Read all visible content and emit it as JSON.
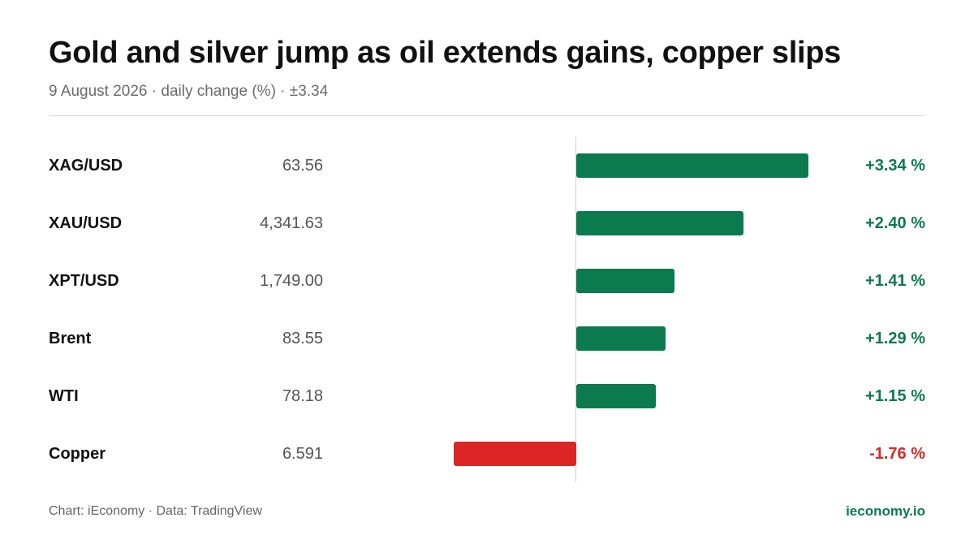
{
  "chart_data": {
    "type": "bar",
    "orientation": "horizontal",
    "title": "Gold and silver jump as oil extends gains, copper slips",
    "subtitle": "9 August 2026 · daily change (%) · ±3.34",
    "xlim": [
      -3.34,
      3.34
    ],
    "rows": [
      {
        "label": "XAG/USD",
        "price": "63.56",
        "change": 3.34,
        "change_label": "+3.34 %"
      },
      {
        "label": "XAU/USD",
        "price": "4,341.63",
        "change": 2.4,
        "change_label": "+2.40 %"
      },
      {
        "label": "XPT/USD",
        "price": "1,749.00",
        "change": 1.41,
        "change_label": "+1.41 %"
      },
      {
        "label": "Brent",
        "price": "83.55",
        "change": 1.29,
        "change_label": "+1.29 %"
      },
      {
        "label": "WTI",
        "price": "78.18",
        "change": 1.15,
        "change_label": "+1.15 %"
      },
      {
        "label": "Copper",
        "price": "6.591",
        "change": -1.76,
        "change_label": "-1.76 %"
      }
    ],
    "colors": {
      "positive": "#0b7a4f",
      "negative": "#dc2626"
    }
  },
  "footer": {
    "source": "Chart: iEconomy · Data: TradingView",
    "brand": "ieconomy.io"
  }
}
